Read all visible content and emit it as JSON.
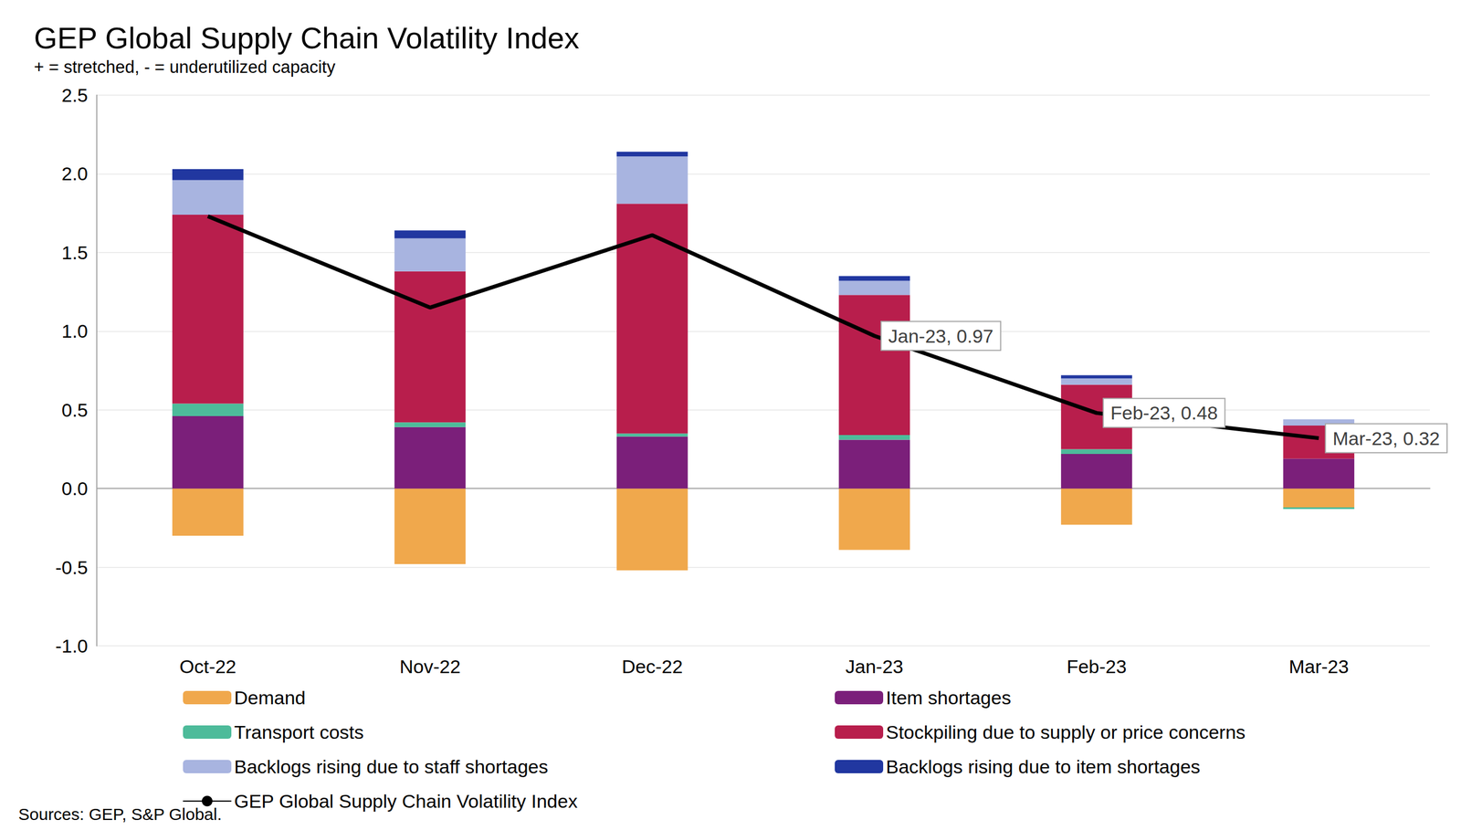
{
  "chart_data": {
    "type": "bar",
    "title": "GEP Global Supply Chain Volatility Index",
    "subtitle": "+ = stretched, - = underutilized capacity",
    "source": "Sources: GEP, S&P Global.",
    "categories": [
      "Oct-22",
      "Nov-22",
      "Dec-22",
      "Jan-23",
      "Feb-23",
      "Mar-23"
    ],
    "series": [
      {
        "name": "Demand",
        "type": "bar",
        "color": "#F0A84C",
        "values": [
          -0.3,
          -0.48,
          -0.52,
          -0.39,
          -0.23,
          -0.12
        ]
      },
      {
        "name": "Item shortages",
        "type": "bar",
        "color": "#7B1F7A",
        "values": [
          0.46,
          0.39,
          0.33,
          0.31,
          0.22,
          0.19
        ]
      },
      {
        "name": "Transport costs",
        "type": "bar",
        "color": "#4DBB9A",
        "values": [
          0.08,
          0.03,
          0.02,
          0.03,
          0.03,
          -0.01
        ]
      },
      {
        "name": "Stockpiling due to supply or price concerns",
        "type": "bar",
        "color": "#B81E4C",
        "values": [
          1.2,
          0.96,
          1.46,
          0.89,
          0.41,
          0.21
        ]
      },
      {
        "name": "Backlogs rising due to staff shortages",
        "type": "bar",
        "color": "#A8B4E0",
        "values": [
          0.22,
          0.21,
          0.3,
          0.09,
          0.04,
          0.04
        ]
      },
      {
        "name": "Backlogs rising due to item shortages",
        "type": "bar",
        "color": "#2137A0",
        "values": [
          0.07,
          0.05,
          0.03,
          0.03,
          0.02,
          0.0
        ]
      },
      {
        "name": "GEP Global Supply Chain Volatility Index",
        "type": "line",
        "color": "#000000",
        "values": [
          1.73,
          1.15,
          1.61,
          0.97,
          0.48,
          0.32
        ]
      }
    ],
    "annotations": [
      {
        "category": "Jan-23",
        "value": 0.97,
        "text": "Jan-23, 0.97"
      },
      {
        "category": "Feb-23",
        "value": 0.48,
        "text": "Feb-23, 0.48"
      },
      {
        "category": "Mar-23",
        "value": 0.32,
        "text": "Mar-23, 0.32"
      }
    ],
    "ylim": [
      -1.0,
      2.5
    ],
    "yticks": [
      {
        "value": -1,
        "label": "-1.0"
      },
      -0.5,
      {
        "value": 0,
        "label": "0.0"
      },
      0.5,
      {
        "value": 1,
        "label": "1.0"
      },
      1.5,
      {
        "value": 2,
        "label": "2.0"
      },
      2.5
    ],
    "grid": true,
    "stacked": true,
    "legend": "bottom"
  }
}
